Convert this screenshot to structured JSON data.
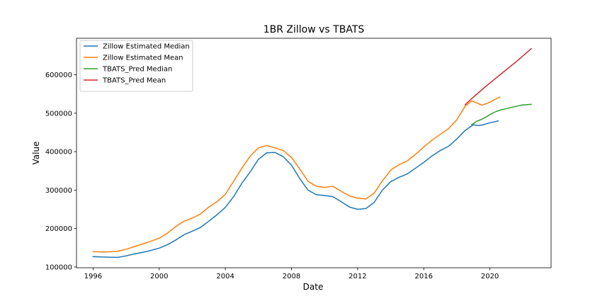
{
  "chart_data": {
    "type": "line",
    "title": "1BR Zillow vs TBATS",
    "xlabel": "Date",
    "ylabel": "Value",
    "xlim": [
      1995.0,
      2023.7
    ],
    "ylim": [
      98000,
      695000
    ],
    "x_ticks": [
      1996,
      2000,
      2004,
      2008,
      2012,
      2016,
      2020
    ],
    "y_ticks": [
      100000,
      200000,
      300000,
      400000,
      500000,
      600000
    ],
    "grid": false,
    "legend_position": "top-left",
    "series": [
      {
        "name": "Zillow Estimated Median",
        "color": "#1f77b4",
        "x": [
          1996.0,
          1996.5,
          1997.0,
          1997.5,
          1998.0,
          1998.5,
          1999.0,
          1999.5,
          2000.0,
          2000.5,
          2001.0,
          2001.5,
          2002.0,
          2002.5,
          2003.0,
          2003.5,
          2004.0,
          2004.5,
          2005.0,
          2005.5,
          2006.0,
          2006.5,
          2007.0,
          2007.5,
          2008.0,
          2008.5,
          2009.0,
          2009.5,
          2010.0,
          2010.5,
          2011.0,
          2011.5,
          2012.0,
          2012.5,
          2013.0,
          2013.5,
          2014.0,
          2014.5,
          2015.0,
          2015.5,
          2016.0,
          2016.5,
          2017.0,
          2017.5,
          2018.0,
          2018.5,
          2019.0,
          2019.3,
          2019.6,
          2019.9,
          2020.2,
          2020.5
        ],
        "values": [
          127000,
          126000,
          125500,
          125000,
          129000,
          134000,
          138000,
          143000,
          149000,
          158000,
          170000,
          184000,
          193000,
          203000,
          219000,
          236000,
          255000,
          283000,
          318000,
          347000,
          380000,
          397000,
          398000,
          387000,
          365000,
          330000,
          300000,
          288000,
          286000,
          283000,
          270000,
          256000,
          250000,
          252000,
          268000,
          300000,
          322000,
          333000,
          342000,
          357000,
          372000,
          389000,
          403000,
          414000,
          433000,
          455000,
          470000,
          468000,
          470000,
          474000,
          477000,
          480000
        ]
      },
      {
        "name": "Zillow Estimated Mean",
        "color": "#ff7f0e",
        "x": [
          1996.0,
          1996.5,
          1997.0,
          1997.5,
          1998.0,
          1998.5,
          1999.0,
          1999.5,
          2000.0,
          2000.5,
          2001.0,
          2001.5,
          2002.0,
          2002.5,
          2003.0,
          2003.5,
          2004.0,
          2004.5,
          2005.0,
          2005.5,
          2006.0,
          2006.5,
          2007.0,
          2007.5,
          2008.0,
          2008.5,
          2009.0,
          2009.5,
          2010.0,
          2010.5,
          2011.0,
          2011.5,
          2012.0,
          2012.5,
          2013.0,
          2013.5,
          2014.0,
          2014.5,
          2015.0,
          2015.5,
          2016.0,
          2016.5,
          2017.0,
          2017.5,
          2018.0,
          2018.5,
          2018.9,
          2019.2,
          2019.5,
          2019.8,
          2020.1,
          2020.4,
          2020.6
        ],
        "values": [
          140000,
          139000,
          139500,
          141000,
          146000,
          153000,
          160000,
          167000,
          175000,
          188000,
          205000,
          219000,
          227000,
          238000,
          256000,
          270000,
          289000,
          323000,
          357000,
          388000,
          410000,
          416000,
          410000,
          403000,
          385000,
          355000,
          323000,
          310000,
          307000,
          310000,
          297000,
          285000,
          279000,
          277000,
          292000,
          324000,
          352000,
          366000,
          376000,
          393000,
          412000,
          430000,
          445000,
          460000,
          483000,
          518000,
          532000,
          527000,
          521000,
          525000,
          531000,
          538000,
          542000
        ]
      },
      {
        "name": "TBATS_Pred Median",
        "color": "#2ca02c",
        "x": [
          2018.9,
          2019.2,
          2019.5,
          2019.8,
          2020.1,
          2020.4,
          2020.7,
          2021.0,
          2021.3,
          2021.6,
          2021.9,
          2022.2,
          2022.5
        ],
        "values": [
          470000,
          479000,
          484000,
          491000,
          499000,
          505000,
          509000,
          512000,
          515000,
          518000,
          521000,
          522000,
          523000
        ]
      },
      {
        "name": "TBATS_Pred Mean",
        "color": "#d62728",
        "x": [
          2018.5,
          2018.9,
          2019.3,
          2019.7,
          2020.1,
          2020.5,
          2020.9,
          2021.3,
          2021.7,
          2022.1,
          2022.5
        ],
        "values": [
          522000,
          538000,
          553000,
          568000,
          582000,
          596000,
          610000,
          624000,
          638000,
          653000,
          668000
        ]
      }
    ]
  }
}
